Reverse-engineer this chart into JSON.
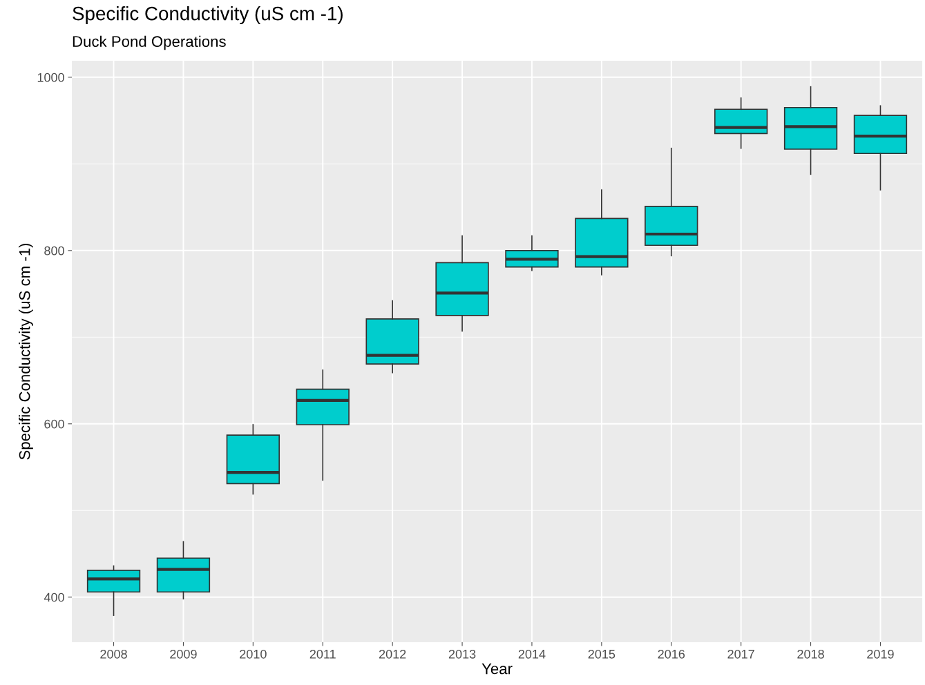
{
  "chart_data": {
    "type": "box",
    "title": "Specific Conductivity (uS cm -1)",
    "subtitle": "Duck Pond Operations",
    "xlabel": "Year",
    "ylabel": "Specific Conductivity (uS cm -1)",
    "categories": [
      "2008",
      "2009",
      "2010",
      "2011",
      "2012",
      "2013",
      "2014",
      "2015",
      "2016",
      "2017",
      "2018",
      "2019"
    ],
    "color": "#00cdcd",
    "boxes": [
      {
        "low": 379,
        "q1": 406,
        "median": 421,
        "q3": 431,
        "high": 436
      },
      {
        "low": 398,
        "q1": 406,
        "median": 432,
        "q3": 445,
        "high": 464
      },
      {
        "low": 519,
        "q1": 531,
        "median": 544,
        "q3": 587,
        "high": 599
      },
      {
        "low": 535,
        "q1": 599,
        "median": 627,
        "q3": 640,
        "high": 662
      },
      {
        "low": 659,
        "q1": 669,
        "median": 679,
        "q3": 721,
        "high": 742
      },
      {
        "low": 707,
        "q1": 725,
        "median": 751,
        "q3": 786,
        "high": 817
      },
      {
        "low": 777,
        "q1": 781,
        "median": 790,
        "q3": 800,
        "high": 817
      },
      {
        "low": 772,
        "q1": 781,
        "median": 793,
        "q3": 837,
        "high": 870
      },
      {
        "low": 794,
        "q1": 806,
        "median": 819,
        "q3": 851,
        "high": 918
      },
      {
        "low": 918,
        "q1": 935,
        "median": 942,
        "q3": 963,
        "high": 976
      },
      {
        "low": 888,
        "q1": 917,
        "median": 943,
        "q3": 965,
        "high": 989
      },
      {
        "low": 870,
        "q1": 912,
        "median": 932,
        "q3": 956,
        "high": 967
      }
    ],
    "ylim": [
      348,
      1019
    ],
    "yticks": [
      400,
      600,
      800,
      1000
    ],
    "grid": true
  }
}
